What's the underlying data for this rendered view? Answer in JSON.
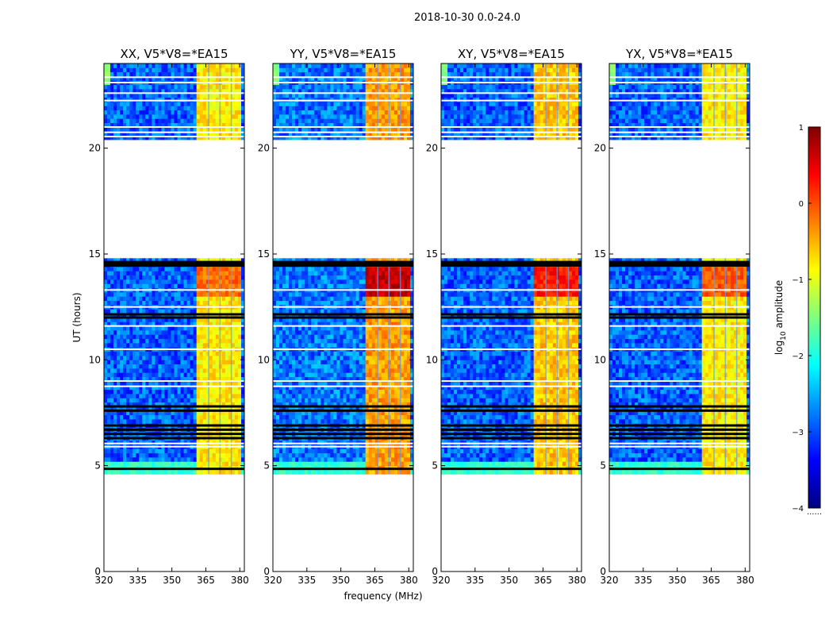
{
  "chart_data": {
    "type": "heatmap",
    "suptitle": "2018-10-30 0.0-24.0",
    "xlabel": "frequency (MHz)",
    "ylabel": "UT (hours)",
    "xlim": [
      320,
      382
    ],
    "ylim": [
      0,
      24
    ],
    "xticks": [
      "320",
      "335",
      "350",
      "365",
      "380"
    ],
    "yticks": [
      "0",
      "5",
      "10",
      "15",
      "20"
    ],
    "colorbar": {
      "label": "log10 amplitude",
      "label_base": "log",
      "label_sub": "10",
      "label_rest": " amplitude",
      "range": [
        -4,
        1
      ],
      "ticks": [
        "1",
        "0",
        "−1",
        "−2",
        "−3",
        "−4"
      ],
      "footnote": "......",
      "colormap": [
        "#00007f",
        "#0000ff",
        "#007fff",
        "#00ffff",
        "#7fff7f",
        "#ffff00",
        "#ff7f00",
        "#ff0000",
        "#7f0000"
      ]
    },
    "data_coverage_hours": [
      [
        4.6,
        14.8
      ],
      [
        20.4,
        24.0
      ]
    ],
    "series": [
      {
        "name": "XX, V5*V8=*EA15",
        "band_mhz": [
          361,
          380
        ],
        "band_level": -0.8,
        "peak_level": 0.1,
        "peak_hours": [
          13.0,
          14.3
        ],
        "background_level": -2.9
      },
      {
        "name": "YY, V5*V8=*EA15",
        "band_mhz": [
          361,
          380
        ],
        "band_level": -0.4,
        "peak_level": 0.9,
        "peak_hours": [
          13.0,
          14.3
        ],
        "background_level": -2.8
      },
      {
        "name": "XY, V5*V8=*EA15",
        "band_mhz": [
          361,
          380
        ],
        "band_level": -0.6,
        "peak_level": 0.5,
        "peak_hours": [
          13.0,
          14.3
        ],
        "background_level": -2.9
      },
      {
        "name": "YX, V5*V8=*EA15",
        "band_mhz": [
          361,
          380
        ],
        "band_level": -0.8,
        "peak_level": 0.2,
        "peak_hours": [
          13.0,
          14.3
        ],
        "background_level": -2.9
      }
    ]
  }
}
